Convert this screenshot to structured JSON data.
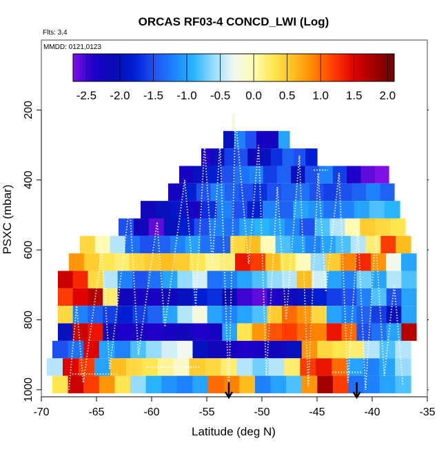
{
  "chart_data": {
    "type": "heatmap",
    "title": "ORCAS RF03-4 CONCD_LWI (Log)",
    "subtitle": "Flts: 3,4",
    "annotation": "MMDD: 0121,0123",
    "xlabel": "Latitude (deg N)",
    "ylabel": "PSXC (mbar)",
    "xlim": [
      -70,
      -35
    ],
    "ylim": [
      1020,
      0
    ],
    "x_ticks": [
      -70,
      -65,
      -60,
      -55,
      -50,
      -45,
      -40,
      -35
    ],
    "x_tick_labels": [
      "-70",
      "-65",
      "-60",
      "-55",
      "-50",
      "-45",
      "-40",
      "-35"
    ],
    "y_ticks": [
      200,
      400,
      600,
      800,
      1000
    ],
    "y_tick_labels": [
      "200",
      "400",
      "600",
      "800",
      "1000"
    ],
    "colorbar": {
      "range": [
        -2.7,
        2.1
      ],
      "ticks": [
        -2.5,
        -2.0,
        -1.5,
        -1.0,
        -0.5,
        0.0,
        0.5,
        1.0,
        1.5,
        2.0
      ],
      "tick_labels": [
        "-2.5",
        "-2.0",
        "-1.5",
        "-1.0",
        "-0.5",
        "0.0",
        "0.5",
        "1.0",
        "1.5",
        "2.0"
      ]
    },
    "palette": [
      "#7f10e6",
      "#1e00c8",
      "#0a0ab4",
      "#001ed2",
      "#1e50f0",
      "#1e82ff",
      "#28b4ff",
      "#96dcff",
      "#f0f8f0",
      "#fffbb4",
      "#ffe650",
      "#ffbe1e",
      "#ff8200",
      "#ff3c00",
      "#e10000",
      "#a00000",
      "#6e0000"
    ],
    "layers": [
      {
        "p_top": 260,
        "p_bot": 310,
        "lat_min": -53.5,
        "lat_max": -47.5,
        "values": [
          -2.0,
          -1.2,
          -1.5,
          -2.3,
          -2.3,
          -1.0
        ]
      },
      {
        "p_top": 310,
        "p_bot": 360,
        "lat_min": -55.5,
        "lat_max": -45.0,
        "values": [
          -2.4,
          -2.0,
          -1.6,
          -1.5,
          -2.2,
          -2.0,
          -1.7,
          -1.4,
          -1.5,
          -1.8
        ]
      },
      {
        "p_top": 360,
        "p_bot": 410,
        "lat_min": -57.5,
        "lat_max": -38.5,
        "values": [
          -2.3,
          -2.0,
          -1.8,
          -1.5,
          -1.3,
          -1.2,
          -1.6,
          -1.4,
          -2.0,
          -1.5,
          -1.2,
          -1.6,
          -2.4,
          -2.6,
          -2.7
        ]
      },
      {
        "p_top": 410,
        "p_bot": 460,
        "lat_min": -58.5,
        "lat_max": -38.0,
        "values": [
          -2.3,
          -1.8,
          -1.5,
          -1.2,
          -1.4,
          -1.5,
          -1.7,
          -1.5,
          -1.4,
          -1.3,
          -1.5,
          -1.6,
          -1.5,
          -1.4,
          -1.2,
          -1.4
        ]
      },
      {
        "p_top": 460,
        "p_bot": 510,
        "lat_min": -61.0,
        "lat_max": -37.5,
        "values": [
          -2.2,
          -2.0,
          -1.9,
          -2.3,
          -1.7,
          -1.2,
          -1.5,
          -1.8,
          -1.2,
          -1.4,
          -1.0,
          -1.1,
          -1.3,
          -1.2,
          -1.0,
          -0.8,
          -0.9
        ]
      },
      {
        "p_top": 510,
        "p_bot": 560,
        "lat_min": -63.0,
        "lat_max": -37.0,
        "values": [
          -1.5,
          -2.2,
          -2.6,
          -2.0,
          -1.8,
          -1.5,
          -1.2,
          -1.3,
          -1.0,
          -0.9,
          -1.0,
          -1.2,
          -1.5,
          -0.8,
          -0.5,
          0.0,
          0.5,
          0.4,
          0.3
        ]
      },
      {
        "p_top": 560,
        "p_bot": 610,
        "lat_min": -66.5,
        "lat_max": -36.5,
        "values": [
          0.4,
          0.0,
          -0.5,
          -1.3,
          -1.5,
          -1.4,
          -1.2,
          -1.0,
          -1.3,
          -1.4,
          0.4,
          0.6,
          0.0,
          -0.8,
          -1.0,
          -1.2,
          -1.0,
          -0.8,
          -0.5,
          0.2,
          1.2,
          0.6
        ]
      },
      {
        "p_top": 610,
        "p_bot": 660,
        "lat_min": -67.5,
        "lat_max": -36.0,
        "values": [
          0.8,
          0.5,
          0.3,
          0.2,
          0.4,
          0.5,
          0.6,
          0.5,
          0.3,
          0.1,
          0.2,
          1.4,
          1.2,
          0.6,
          0.3,
          0.0,
          -0.6,
          0.5,
          0.9,
          1.3,
          0.8,
          -0.3,
          -1.0
        ]
      },
      {
        "p_top": 660,
        "p_bot": 710,
        "lat_min": -68.5,
        "lat_max": -36.0,
        "values": [
          1.6,
          1.3,
          0.4,
          -0.5,
          -1.2,
          -1.5,
          -1.3,
          -1.0,
          -0.6,
          -0.4,
          -1.3,
          -1.2,
          -1.0,
          -0.8,
          -0.6,
          -0.5,
          0.6,
          -0.4,
          -1.0,
          -1.2,
          -0.7,
          -1.0,
          -0.5,
          -0.8
        ]
      },
      {
        "p_top": 710,
        "p_bot": 760,
        "lat_min": -68.5,
        "lat_max": -36.0,
        "values": [
          1.2,
          1.5,
          1.7,
          0.2,
          -2.2,
          -2.3,
          -2.3,
          -2.2,
          -2.0,
          -1.8,
          -1.7,
          -2.1,
          -2.5,
          -2.6,
          -2.4,
          -2.2,
          -2.0,
          -1.8,
          -1.6,
          -1.5,
          -1.2,
          -0.8,
          -1.5,
          -1.0
        ]
      },
      {
        "p_top": 760,
        "p_bot": 810,
        "lat_min": -68.5,
        "lat_max": -36.0,
        "values": [
          0.4,
          -1.2,
          -1.4,
          -1.6,
          -1.8,
          -1.6,
          -1.4,
          -1.0,
          -0.5,
          -0.2,
          -1.0,
          -1.2,
          -1.0,
          -0.8,
          0.5,
          1.0,
          0.8,
          0.4,
          -1.0,
          -1.2,
          -1.4,
          -1.6,
          -2.0,
          -1.0
        ]
      },
      {
        "p_top": 810,
        "p_bot": 860,
        "lat_min": -68.5,
        "lat_max": -36.0,
        "values": [
          -2.0,
          1.6,
          1.4,
          -2.2,
          -2.4,
          -2.3,
          -2.4,
          -2.3,
          -2.2,
          -2.4,
          -2.3,
          -1.0,
          0.3,
          0.8,
          1.1,
          1.2,
          1.0,
          0.9,
          1.4,
          1.0,
          -1.5,
          -1.3,
          -1.0,
          1.7
        ]
      },
      {
        "p_top": 860,
        "p_bot": 910,
        "lat_min": -69.0,
        "lat_max": -36.5,
        "values": [
          -1.5,
          -1.3,
          1.5,
          -1.0,
          -1.2,
          -0.8,
          -0.6,
          -0.4,
          -0.3,
          -2.0,
          -2.2,
          -2.3,
          -2.4,
          -2.3,
          -2.2,
          -2.0,
          0.8,
          0.4,
          0.3,
          0.2,
          -0.5,
          -0.8,
          -0.5
        ]
      },
      {
        "p_top": 910,
        "p_bot": 960,
        "lat_min": -69.5,
        "lat_max": -36.5,
        "values": [
          -0.5,
          1.5,
          1.2,
          -1.0,
          0.6,
          0.4,
          0.3,
          0.1,
          -0.1,
          0.5,
          0.4,
          0.2,
          -0.5,
          -0.7,
          -0.5,
          0.2,
          1.2,
          1.4,
          1.0,
          -1.0,
          -1.2,
          -1.0,
          -0.6
        ]
      },
      {
        "p_top": 960,
        "p_bot": 1010,
        "lat_min": -69.0,
        "lat_max": -36.5,
        "values": [
          0.3,
          1.6,
          1.2,
          0.8,
          0.3,
          -0.6,
          -0.9,
          -1.1,
          -1.2,
          -1.0,
          1.0,
          0.9,
          0.6,
          -1.2,
          -1.0,
          -0.8,
          0.8,
          1.8,
          1.2,
          -1.3,
          -1.2,
          -1.0,
          -0.8
        ]
      }
    ],
    "column_top": {
      "lat": -52.6,
      "p_top": 210,
      "p_bot": 260,
      "value": -0.2
    },
    "markers": [
      {
        "type": "arrow",
        "lat": -53.0,
        "p": 1010
      },
      {
        "type": "arrow",
        "lat": -41.4,
        "p": 1010
      }
    ],
    "flight_track_color": "#ffffff"
  }
}
